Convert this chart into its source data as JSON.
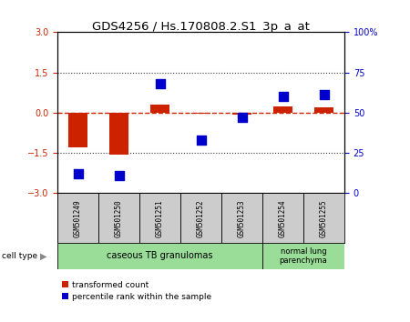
{
  "title": "GDS4256 / Hs.170808.2.S1_3p_a_at",
  "samples": [
    "GSM501249",
    "GSM501250",
    "GSM501251",
    "GSM501252",
    "GSM501253",
    "GSM501254",
    "GSM501255"
  ],
  "transformed_count": [
    -1.3,
    -1.55,
    0.3,
    -0.05,
    -0.07,
    0.25,
    0.2
  ],
  "percentile_rank_raw": [
    12,
    11,
    68,
    33,
    47,
    60,
    61
  ],
  "ylim_left": [
    -3,
    3
  ],
  "ylim_right": [
    0,
    100
  ],
  "left_ticks": [
    -3,
    -1.5,
    0,
    1.5,
    3
  ],
  "right_ticks": [
    0,
    25,
    50,
    75,
    100
  ],
  "bar_color": "#cc2200",
  "dot_color": "#0000cc",
  "zero_line_color": "#cc2200",
  "dotted_line_color": "#333333",
  "group1_label": "caseous TB granulomas",
  "group1_color": "#99dd99",
  "group2_label": "normal lung\nparenchyma",
  "group2_color": "#99dd99",
  "sample_box_color": "#cccccc",
  "cell_type_label": "cell type",
  "legend_red": "transformed count",
  "legend_blue": "percentile rank within the sample",
  "bar_width": 0.45,
  "dot_size": 50,
  "n_group1": 5,
  "n_group2": 2
}
